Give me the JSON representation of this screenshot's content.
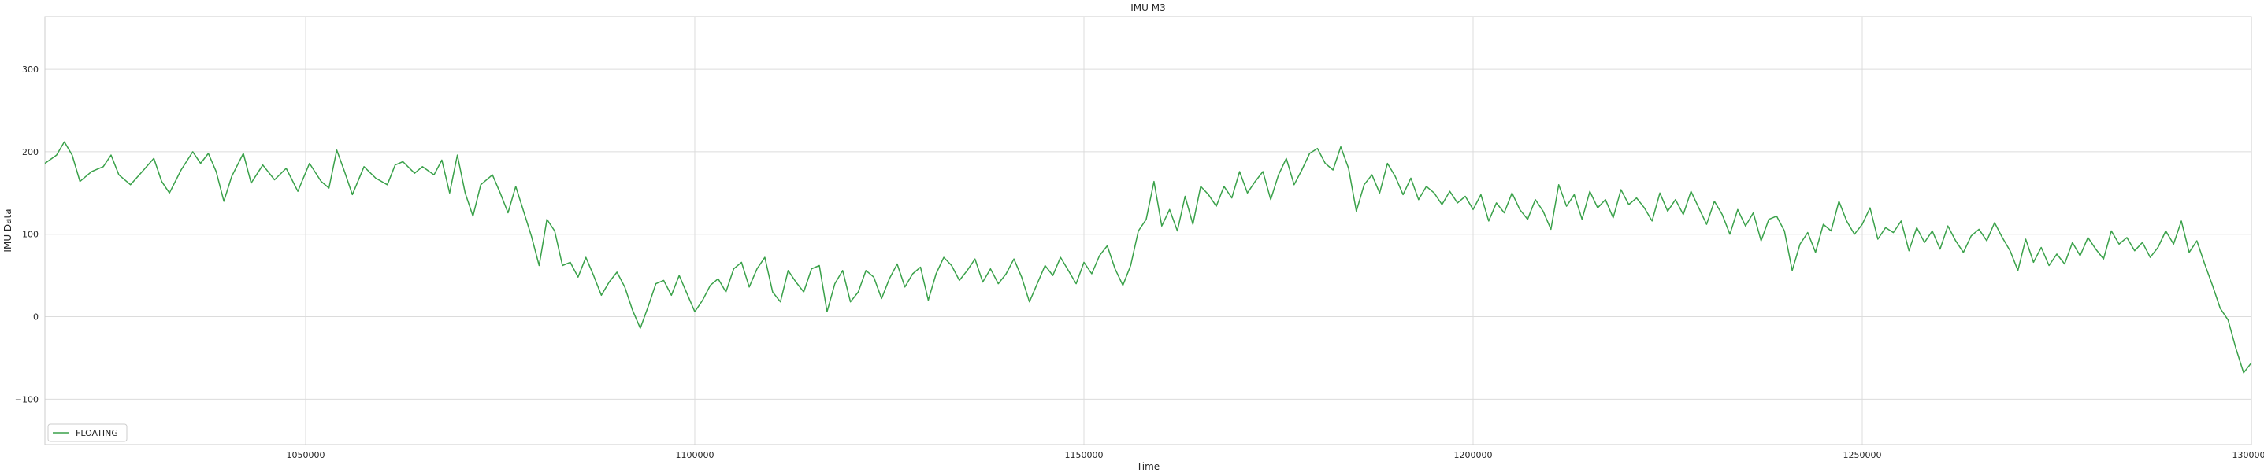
{
  "chart_data": {
    "type": "line",
    "title": "IMU M3",
    "xlabel": "Time",
    "ylabel": "IMU Data",
    "xlim": [
      1016500,
      1300000
    ],
    "ylim": [
      -155,
      364
    ],
    "xticks": [
      1050000,
      1100000,
      1150000,
      1200000,
      1250000,
      1300000
    ],
    "xtick_labels": [
      "1050000",
      "1100000",
      "1150000",
      "1200000",
      "1250000",
      "1300000"
    ],
    "yticks": [
      -100,
      0,
      100,
      200,
      300
    ],
    "ytick_labels": [
      "−100",
      "0",
      "100",
      "200",
      "300"
    ],
    "grid": true,
    "legend_position": "lower-left",
    "series": [
      {
        "name": "FLOATING",
        "color": "#3aa14a",
        "points": [
          [
            1016500,
            186
          ],
          [
            1018000,
            196
          ],
          [
            1019000,
            212
          ],
          [
            1020000,
            196
          ],
          [
            1021000,
            164
          ],
          [
            1022500,
            176
          ],
          [
            1024000,
            182
          ],
          [
            1025000,
            196
          ],
          [
            1026000,
            172
          ],
          [
            1027500,
            160
          ],
          [
            1029000,
            176
          ],
          [
            1030500,
            192
          ],
          [
            1031500,
            164
          ],
          [
            1032500,
            150
          ],
          [
            1034000,
            178
          ],
          [
            1035500,
            200
          ],
          [
            1036500,
            186
          ],
          [
            1037500,
            198
          ],
          [
            1038500,
            176
          ],
          [
            1039500,
            140
          ],
          [
            1040500,
            170
          ],
          [
            1042000,
            198
          ],
          [
            1043000,
            162
          ],
          [
            1044500,
            184
          ],
          [
            1046000,
            166
          ],
          [
            1047500,
            180
          ],
          [
            1049000,
            152
          ],
          [
            1050500,
            186
          ],
          [
            1052000,
            164
          ],
          [
            1053000,
            156
          ],
          [
            1054000,
            202
          ],
          [
            1055000,
            176
          ],
          [
            1056000,
            148
          ],
          [
            1057500,
            182
          ],
          [
            1059000,
            168
          ],
          [
            1060500,
            160
          ],
          [
            1061500,
            184
          ],
          [
            1062500,
            188
          ],
          [
            1064000,
            174
          ],
          [
            1065000,
            182
          ],
          [
            1066500,
            172
          ],
          [
            1067500,
            190
          ],
          [
            1068500,
            150
          ],
          [
            1069500,
            196
          ],
          [
            1070500,
            150
          ],
          [
            1071500,
            122
          ],
          [
            1072500,
            160
          ],
          [
            1074000,
            172
          ],
          [
            1075000,
            150
          ],
          [
            1076000,
            126
          ],
          [
            1077000,
            158
          ],
          [
            1078000,
            128
          ],
          [
            1079000,
            98
          ],
          [
            1080000,
            62
          ],
          [
            1081000,
            118
          ],
          [
            1082000,
            104
          ],
          [
            1083000,
            62
          ],
          [
            1084000,
            66
          ],
          [
            1085000,
            48
          ],
          [
            1086000,
            72
          ],
          [
            1087000,
            50
          ],
          [
            1088000,
            26
          ],
          [
            1089000,
            42
          ],
          [
            1090000,
            54
          ],
          [
            1091000,
            36
          ],
          [
            1092000,
            8
          ],
          [
            1093000,
            -14
          ],
          [
            1094000,
            12
          ],
          [
            1095000,
            40
          ],
          [
            1096000,
            44
          ],
          [
            1097000,
            26
          ],
          [
            1098000,
            50
          ],
          [
            1099000,
            28
          ],
          [
            1100000,
            6
          ],
          [
            1101000,
            20
          ],
          [
            1102000,
            38
          ],
          [
            1103000,
            46
          ],
          [
            1104000,
            30
          ],
          [
            1105000,
            58
          ],
          [
            1106000,
            66
          ],
          [
            1107000,
            36
          ],
          [
            1108000,
            58
          ],
          [
            1109000,
            72
          ],
          [
            1110000,
            30
          ],
          [
            1111000,
            18
          ],
          [
            1112000,
            56
          ],
          [
            1113000,
            42
          ],
          [
            1114000,
            30
          ],
          [
            1115000,
            58
          ],
          [
            1116000,
            62
          ],
          [
            1117000,
            6
          ],
          [
            1118000,
            40
          ],
          [
            1119000,
            56
          ],
          [
            1120000,
            18
          ],
          [
            1121000,
            30
          ],
          [
            1122000,
            56
          ],
          [
            1123000,
            48
          ],
          [
            1124000,
            22
          ],
          [
            1125000,
            46
          ],
          [
            1126000,
            64
          ],
          [
            1127000,
            36
          ],
          [
            1128000,
            52
          ],
          [
            1129000,
            60
          ],
          [
            1130000,
            20
          ],
          [
            1131000,
            52
          ],
          [
            1132000,
            72
          ],
          [
            1133000,
            62
          ],
          [
            1134000,
            44
          ],
          [
            1135000,
            56
          ],
          [
            1136000,
            70
          ],
          [
            1137000,
            42
          ],
          [
            1138000,
            58
          ],
          [
            1139000,
            40
          ],
          [
            1140000,
            52
          ],
          [
            1141000,
            70
          ],
          [
            1142000,
            48
          ],
          [
            1143000,
            18
          ],
          [
            1144000,
            40
          ],
          [
            1145000,
            62
          ],
          [
            1146000,
            50
          ],
          [
            1147000,
            72
          ],
          [
            1148000,
            56
          ],
          [
            1149000,
            40
          ],
          [
            1150000,
            66
          ],
          [
            1151000,
            52
          ],
          [
            1152000,
            74
          ],
          [
            1153000,
            86
          ],
          [
            1154000,
            58
          ],
          [
            1155000,
            38
          ],
          [
            1156000,
            62
          ],
          [
            1157000,
            104
          ],
          [
            1158000,
            118
          ],
          [
            1159000,
            164
          ],
          [
            1160000,
            110
          ],
          [
            1161000,
            130
          ],
          [
            1162000,
            104
          ],
          [
            1163000,
            146
          ],
          [
            1164000,
            112
          ],
          [
            1165000,
            158
          ],
          [
            1166000,
            148
          ],
          [
            1167000,
            134
          ],
          [
            1168000,
            158
          ],
          [
            1169000,
            144
          ],
          [
            1170000,
            176
          ],
          [
            1171000,
            150
          ],
          [
            1172000,
            164
          ],
          [
            1173000,
            176
          ],
          [
            1174000,
            142
          ],
          [
            1175000,
            172
          ],
          [
            1176000,
            192
          ],
          [
            1177000,
            160
          ],
          [
            1178000,
            178
          ],
          [
            1179000,
            198
          ],
          [
            1180000,
            204
          ],
          [
            1181000,
            186
          ],
          [
            1182000,
            178
          ],
          [
            1183000,
            206
          ],
          [
            1184000,
            180
          ],
          [
            1185000,
            128
          ],
          [
            1186000,
            160
          ],
          [
            1187000,
            172
          ],
          [
            1188000,
            150
          ],
          [
            1189000,
            186
          ],
          [
            1190000,
            170
          ],
          [
            1191000,
            148
          ],
          [
            1192000,
            168
          ],
          [
            1193000,
            142
          ],
          [
            1194000,
            158
          ],
          [
            1195000,
            150
          ],
          [
            1196000,
            136
          ],
          [
            1197000,
            152
          ],
          [
            1198000,
            138
          ],
          [
            1199000,
            146
          ],
          [
            1200000,
            130
          ],
          [
            1201000,
            148
          ],
          [
            1202000,
            116
          ],
          [
            1203000,
            138
          ],
          [
            1204000,
            126
          ],
          [
            1205000,
            150
          ],
          [
            1206000,
            130
          ],
          [
            1207000,
            118
          ],
          [
            1208000,
            142
          ],
          [
            1209000,
            128
          ],
          [
            1210000,
            106
          ],
          [
            1211000,
            160
          ],
          [
            1212000,
            134
          ],
          [
            1213000,
            148
          ],
          [
            1214000,
            118
          ],
          [
            1215000,
            152
          ],
          [
            1216000,
            132
          ],
          [
            1217000,
            142
          ],
          [
            1218000,
            120
          ],
          [
            1219000,
            154
          ],
          [
            1220000,
            136
          ],
          [
            1221000,
            144
          ],
          [
            1222000,
            132
          ],
          [
            1223000,
            116
          ],
          [
            1224000,
            150
          ],
          [
            1225000,
            128
          ],
          [
            1226000,
            142
          ],
          [
            1227000,
            124
          ],
          [
            1228000,
            152
          ],
          [
            1229000,
            132
          ],
          [
            1230000,
            112
          ],
          [
            1231000,
            140
          ],
          [
            1232000,
            124
          ],
          [
            1233000,
            100
          ],
          [
            1234000,
            130
          ],
          [
            1235000,
            110
          ],
          [
            1236000,
            126
          ],
          [
            1237000,
            92
          ],
          [
            1238000,
            118
          ],
          [
            1239000,
            122
          ],
          [
            1240000,
            104
          ],
          [
            1241000,
            56
          ],
          [
            1242000,
            88
          ],
          [
            1243000,
            102
          ],
          [
            1244000,
            78
          ],
          [
            1245000,
            112
          ],
          [
            1246000,
            104
          ],
          [
            1247000,
            140
          ],
          [
            1248000,
            116
          ],
          [
            1249000,
            100
          ],
          [
            1250000,
            112
          ],
          [
            1251000,
            132
          ],
          [
            1252000,
            94
          ],
          [
            1253000,
            108
          ],
          [
            1254000,
            102
          ],
          [
            1255000,
            116
          ],
          [
            1256000,
            80
          ],
          [
            1257000,
            108
          ],
          [
            1258000,
            90
          ],
          [
            1259000,
            104
          ],
          [
            1260000,
            82
          ],
          [
            1261000,
            110
          ],
          [
            1262000,
            92
          ],
          [
            1263000,
            78
          ],
          [
            1264000,
            98
          ],
          [
            1265000,
            106
          ],
          [
            1266000,
            92
          ],
          [
            1267000,
            114
          ],
          [
            1268000,
            96
          ],
          [
            1269000,
            80
          ],
          [
            1270000,
            56
          ],
          [
            1271000,
            94
          ],
          [
            1272000,
            66
          ],
          [
            1273000,
            84
          ],
          [
            1274000,
            62
          ],
          [
            1275000,
            76
          ],
          [
            1276000,
            64
          ],
          [
            1277000,
            90
          ],
          [
            1278000,
            74
          ],
          [
            1279000,
            96
          ],
          [
            1280000,
            82
          ],
          [
            1281000,
            70
          ],
          [
            1282000,
            104
          ],
          [
            1283000,
            88
          ],
          [
            1284000,
            96
          ],
          [
            1285000,
            80
          ],
          [
            1286000,
            90
          ],
          [
            1287000,
            72
          ],
          [
            1288000,
            84
          ],
          [
            1289000,
            104
          ],
          [
            1290000,
            88
          ],
          [
            1291000,
            116
          ],
          [
            1292000,
            78
          ],
          [
            1293000,
            92
          ],
          [
            1294000,
            64
          ],
          [
            1295000,
            38
          ],
          [
            1296000,
            10
          ],
          [
            1297000,
            -4
          ],
          [
            1298000,
            -38
          ],
          [
            1299000,
            -68
          ],
          [
            1300000,
            -56
          ]
        ]
      }
    ]
  }
}
